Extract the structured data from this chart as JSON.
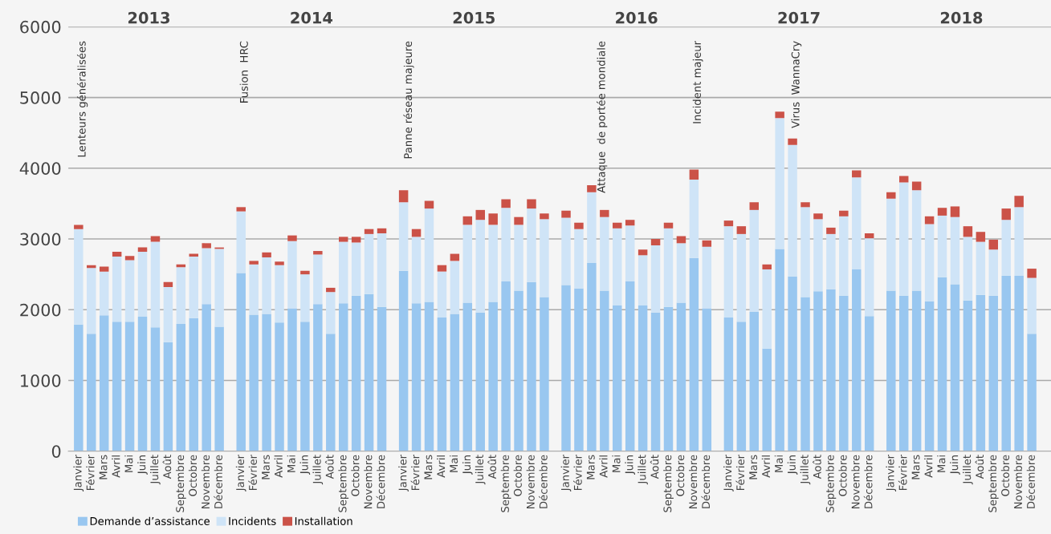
{
  "chart_data": {
    "type": "bar",
    "stacked": true,
    "categories": [
      "Janvier",
      "Février",
      "Mars",
      "Avril",
      "Mai",
      "Juin",
      "Juillet",
      "Août",
      "Septembre",
      "Octobre",
      "Novembre",
      "Décembre",
      "Janvier",
      "Février",
      "Mars",
      "Avril",
      "Mai",
      "Juin",
      "Juillet",
      "Août",
      "Septembre",
      "Octobre",
      "Novembre",
      "Décembre",
      "Janvier",
      "Février",
      "Mars",
      "Avril",
      "Mai",
      "Juin",
      "Juillet",
      "Août",
      "Septembre",
      "Octobre",
      "Novembre",
      "Décembre",
      "Janvier",
      "Février",
      "Mars",
      "Avril",
      "Mai",
      "Juin",
      "Juillet",
      "Août",
      "Septembre",
      "Octobre",
      "Novembre",
      "Décembre",
      "Janvier",
      "Février",
      "Mars",
      "Avril",
      "Mai",
      "Juin",
      "Juillet",
      "Août",
      "Septembre",
      "Octobre",
      "Novembre",
      "Décembre",
      "Janvier",
      "Février",
      "Mars",
      "Avril",
      "Mai",
      "Juin",
      "Juillet",
      "Août",
      "Septembre",
      "Octobre",
      "Novembre",
      "Décembre"
    ],
    "series": [
      {
        "name": "Demande d’assistance",
        "color": "#99c7f0",
        "values": [
          1790,
          1660,
          1920,
          1830,
          1830,
          1900,
          1750,
          1540,
          1800,
          1880,
          2080,
          1760,
          2520,
          1930,
          1940,
          1820,
          2020,
          1830,
          2080,
          1660,
          2090,
          2200,
          2220,
          2040,
          2550,
          2090,
          2110,
          1890,
          1940,
          2100,
          1960,
          2110,
          2400,
          2270,
          2390,
          2180,
          2350,
          2300,
          2660,
          2270,
          2060,
          2400,
          2060,
          1960,
          2040,
          2100,
          2730,
          2020,
          1890,
          1830,
          1970,
          1450,
          2860,
          2470,
          2180,
          2260,
          2290,
          2200,
          2570,
          1910,
          2270,
          2200,
          2270,
          2120,
          2460,
          2360,
          2130,
          2210,
          2200,
          2480,
          2480,
          1660
        ]
      },
      {
        "name": "Incidents",
        "color": "#cfe4f7",
        "values": [
          1350,
          930,
          620,
          920,
          870,
          920,
          1210,
          780,
          800,
          870,
          790,
          1100,
          870,
          710,
          800,
          810,
          950,
          670,
          700,
          590,
          870,
          750,
          850,
          1040,
          970,
          940,
          1320,
          650,
          750,
          1100,
          1310,
          1090,
          1040,
          930,
          1040,
          1100,
          950,
          840,
          1000,
          1040,
          1090,
          790,
          710,
          950,
          1110,
          840,
          1110,
          870,
          1290,
          1240,
          1440,
          1120,
          1850,
          1860,
          1270,
          1020,
          780,
          1120,
          1300,
          1100,
          1300,
          1600,
          1420,
          1090,
          870,
          950,
          900,
          750,
          650,
          790,
          970,
          790
        ]
      },
      {
        "name": "Installation",
        "color": "#cb5248",
        "values": [
          60,
          40,
          70,
          70,
          60,
          60,
          80,
          70,
          40,
          40,
          70,
          20,
          60,
          50,
          70,
          50,
          80,
          50,
          50,
          60,
          70,
          80,
          70,
          70,
          170,
          110,
          110,
          90,
          100,
          120,
          140,
          160,
          120,
          110,
          130,
          80,
          100,
          90,
          100,
          100,
          80,
          80,
          80,
          90,
          80,
          100,
          140,
          90,
          80,
          110,
          110,
          70,
          90,
          90,
          70,
          80,
          90,
          80,
          100,
          70,
          90,
          90,
          120,
          110,
          110,
          150,
          150,
          140,
          140,
          160,
          160,
          130
        ]
      }
    ],
    "ylim": [
      0,
      6000
    ],
    "yticks": [
      0,
      1000,
      2000,
      3000,
      4000,
      5000,
      6000
    ],
    "grid": "y",
    "legend": "bottom",
    "annotations": [
      "2013",
      "2014",
      "2015",
      "2016",
      "2017",
      "2018",
      "Lenteurs généralisées",
      "Fusion  HRC",
      "Panne réseau majeure",
      "Attaque  de portée mondiale",
      "Incident majeur",
      "Virus  WannaCry"
    ]
  }
}
